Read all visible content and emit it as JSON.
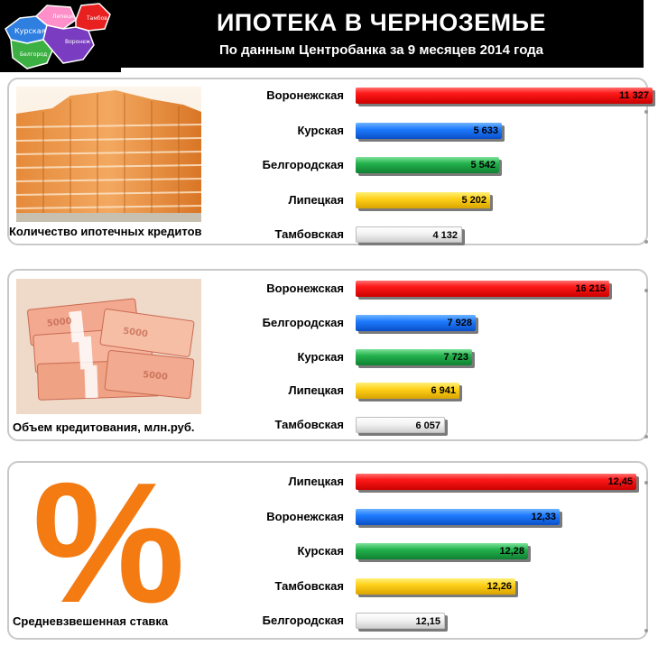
{
  "header": {
    "title": "ИПОТЕКА В ЧЕРНОЗЕМЬЕ",
    "subtitle": "По данным Центробанка за 9 месяцев 2014 года"
  },
  "logo_map": {
    "regions": [
      "Курская",
      "Липецк",
      "Тамбов",
      "Воронеж",
      "Белгород"
    ]
  },
  "colors": {
    "red": "#ff1a1a",
    "blue": "#1f7bff",
    "green": "#22b24c",
    "yellow": "#ffd11a",
    "white": "#f2f2f2",
    "percent": "#f47a12"
  },
  "panels": [
    {
      "caption": "Количество ипотечных кредитов",
      "picture": "apartment-building-photo"
    },
    {
      "caption": "Объем кредитования, млн.руб.",
      "picture": "ruble-banknotes-photo"
    },
    {
      "caption": "Средневзвешенная ставка",
      "picture": "percent-sign",
      "symbol": "%"
    }
  ],
  "chart_data": [
    {
      "type": "bar",
      "orientation": "horizontal",
      "categories": [
        "Воронежская",
        "Курская",
        "Белгородская",
        "Липецкая",
        "Тамбовская"
      ],
      "values": [
        11327,
        5633,
        5542,
        5202,
        4132
      ],
      "labels": [
        "11 327",
        "5 633",
        "5 542",
        "5 202",
        "4 132"
      ],
      "bar_colors": [
        "red",
        "blue",
        "green",
        "yellow",
        "white"
      ],
      "xlim": [
        0,
        11327
      ]
    },
    {
      "type": "bar",
      "orientation": "horizontal",
      "categories": [
        "Воронежская",
        "Белгородская",
        "Курская",
        "Липецкая",
        "Тамбовская"
      ],
      "values": [
        16215,
        7928,
        7723,
        6941,
        6057
      ],
      "labels": [
        "16 215",
        "7 928",
        "7 723",
        "6 941",
        "6 057"
      ],
      "bar_colors": [
        "red",
        "blue",
        "green",
        "yellow",
        "white"
      ],
      "xlim": [
        0,
        16215
      ]
    },
    {
      "type": "bar",
      "orientation": "horizontal",
      "categories": [
        "Липецкая",
        "Воронежская",
        "Курская",
        "Тамбовская",
        "Белгородская"
      ],
      "values": [
        12.45,
        12.33,
        12.28,
        12.26,
        12.15
      ],
      "labels": [
        "12,45",
        "12,33",
        "12,28",
        "12,26",
        "12,15"
      ],
      "bar_colors": [
        "red",
        "blue",
        "green",
        "yellow",
        "white"
      ],
      "xlim": [
        12.1,
        12.45
      ]
    }
  ]
}
